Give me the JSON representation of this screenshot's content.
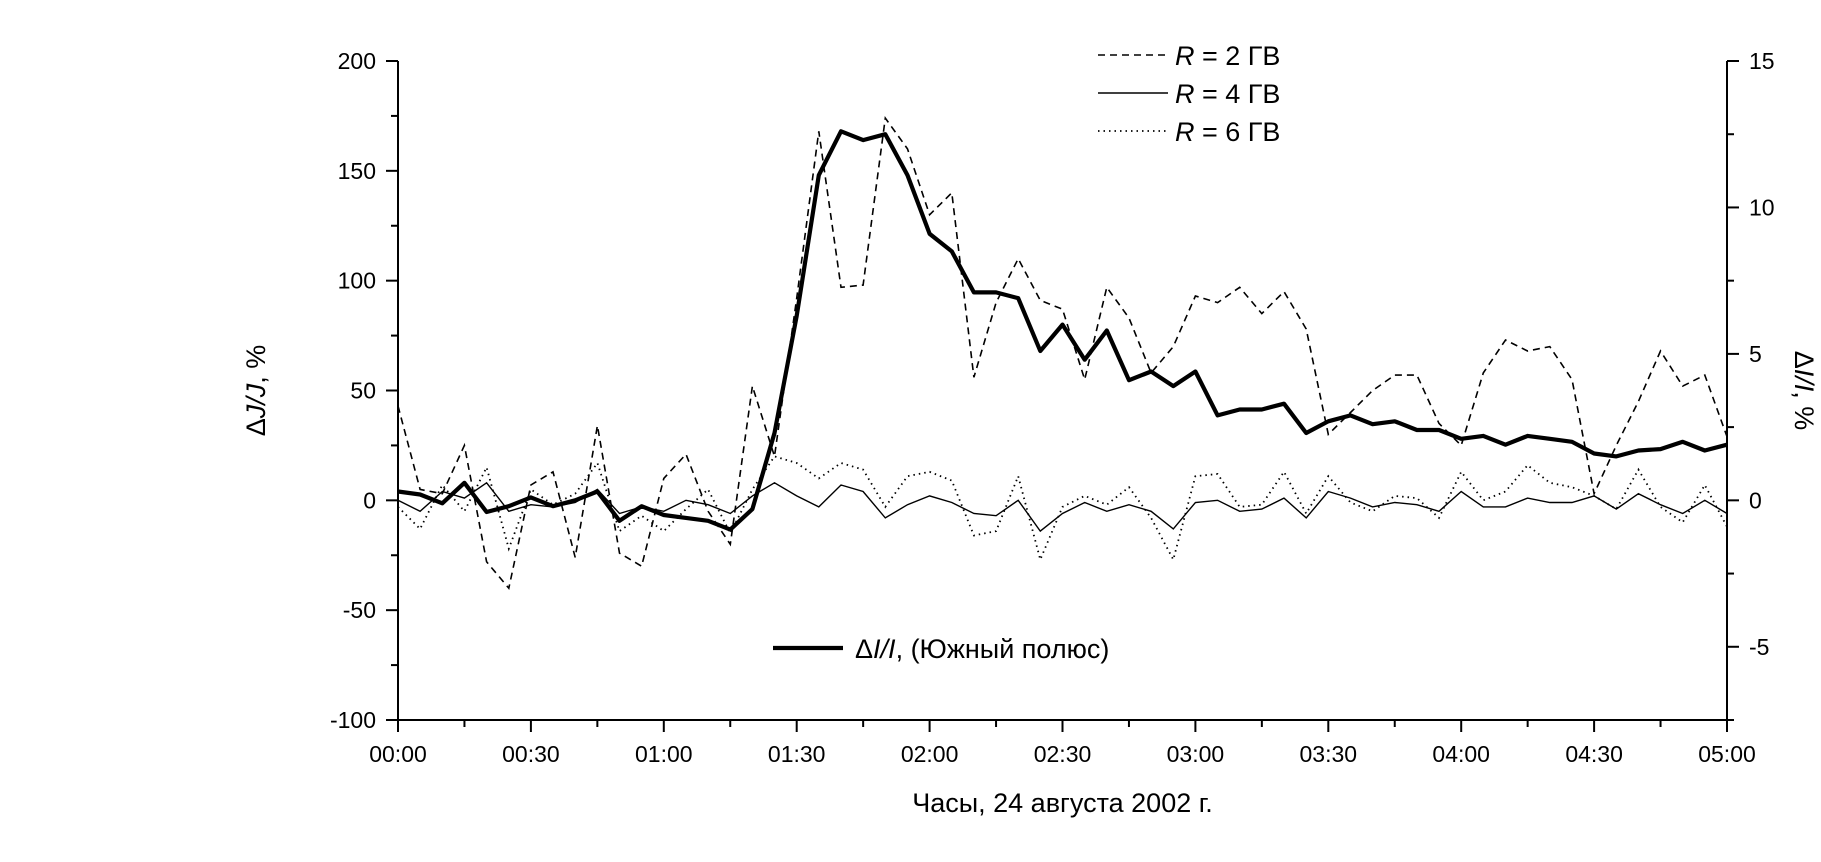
{
  "chart_data": {
    "type": "line",
    "xlabel": "Часы, 24 августа 2002 г.",
    "ylabel_left": "ΔJ/J, %",
    "ylabel_right": "ΔI/I, %",
    "x_ticks": [
      "00:00",
      "00:30",
      "01:00",
      "01:30",
      "02:00",
      "02:30",
      "03:00",
      "03:30",
      "04:00",
      "04:30",
      "05:00"
    ],
    "xlim_minutes": [
      0,
      300
    ],
    "ylim_left": [
      -100,
      200
    ],
    "ylim_right": [
      -7.5,
      15
    ],
    "yticks_left": [
      -100,
      -50,
      0,
      50,
      100,
      150,
      200
    ],
    "yticks_right": [
      -5,
      0,
      5,
      10,
      15
    ],
    "grid": false,
    "legend_top": {
      "position": "top-center",
      "entries": [
        {
          "prefix": "R",
          "text": " = 2 ГВ",
          "style": "dashed"
        },
        {
          "prefix": "R",
          "text": " = 4 ГВ",
          "style": "solid"
        },
        {
          "prefix": "R",
          "text": " = 6 ГВ",
          "style": "dotted"
        }
      ]
    },
    "legend_bottom": {
      "position": "bottom-center",
      "entry": {
        "pre": "Δ",
        "italic": "I/I",
        "post": ", (Южный полюс)",
        "style": "bold"
      }
    },
    "series": [
      {
        "name": "R = 2 ГВ",
        "axis": "left",
        "style": "dashed",
        "x": [
          0,
          5,
          10,
          15,
          20,
          25,
          30,
          35,
          40,
          45,
          50,
          55,
          60,
          65,
          70,
          75,
          80,
          85,
          90,
          95,
          100,
          105,
          110,
          115,
          120,
          125,
          130,
          135,
          140,
          145,
          150,
          155,
          160,
          165,
          170,
          175,
          180,
          185,
          190,
          195,
          200,
          205,
          210,
          215,
          220,
          225,
          230,
          235,
          240,
          245,
          250,
          255,
          260,
          265,
          270,
          275,
          280,
          285,
          290,
          295,
          300
        ],
        "y": [
          43,
          5,
          3,
          25,
          -28,
          -40,
          7,
          13,
          -26,
          34,
          -24,
          -30,
          10,
          21,
          -5,
          -20,
          52,
          20,
          92,
          168,
          97,
          98,
          174,
          160,
          130,
          140,
          56,
          90,
          110,
          91,
          87,
          55,
          97,
          83,
          58,
          70,
          93,
          90,
          97,
          85,
          95,
          78,
          30,
          40,
          50,
          57,
          57,
          35,
          25,
          58,
          73,
          68,
          70,
          55,
          3,
          25,
          45,
          68,
          52,
          57,
          29
        ]
      },
      {
        "name": "R = 4 ГВ",
        "axis": "left",
        "style": "solid",
        "x": [
          0,
          5,
          10,
          15,
          20,
          25,
          30,
          35,
          40,
          45,
          50,
          55,
          60,
          65,
          70,
          75,
          80,
          85,
          90,
          95,
          100,
          105,
          110,
          115,
          120,
          125,
          130,
          135,
          140,
          145,
          150,
          155,
          160,
          165,
          170,
          175,
          180,
          185,
          190,
          195,
          200,
          205,
          210,
          215,
          220,
          225,
          230,
          235,
          240,
          245,
          250,
          255,
          260,
          265,
          270,
          275,
          280,
          285,
          290,
          295,
          300
        ],
        "y": [
          0,
          -5,
          4,
          1,
          8,
          -5,
          -2,
          -3,
          -1,
          5,
          -6,
          -3,
          -5,
          0,
          -2,
          -6,
          2,
          8,
          2,
          -3,
          7,
          4,
          -8,
          -2,
          2,
          -1,
          -6,
          -7,
          0,
          -14,
          -6,
          -1,
          -5,
          -2,
          -5,
          -13,
          -1,
          0,
          -5,
          -4,
          1,
          -8,
          4,
          1,
          -3,
          -1,
          -2,
          -5,
          4,
          -3,
          -3,
          1,
          -1,
          -1,
          2,
          -4,
          3,
          -2,
          -6,
          0,
          -6
        ]
      },
      {
        "name": "R = 6 ГВ",
        "axis": "left",
        "style": "dotted",
        "x": [
          0,
          5,
          10,
          15,
          20,
          25,
          30,
          35,
          40,
          45,
          50,
          55,
          60,
          65,
          70,
          75,
          80,
          85,
          90,
          95,
          100,
          105,
          110,
          115,
          120,
          125,
          130,
          135,
          140,
          145,
          150,
          155,
          160,
          165,
          170,
          175,
          180,
          185,
          190,
          195,
          200,
          205,
          210,
          215,
          220,
          225,
          230,
          235,
          240,
          245,
          250,
          255,
          260,
          265,
          270,
          275,
          280,
          285,
          290,
          295,
          300
        ],
        "y": [
          -3,
          -13,
          7,
          -5,
          15,
          -22,
          5,
          -2,
          3,
          17,
          -14,
          -7,
          -14,
          -4,
          5,
          -15,
          5,
          20,
          17,
          10,
          17,
          14,
          -3,
          11,
          13,
          9,
          -16,
          -14,
          11,
          -27,
          -3,
          2,
          -2,
          6,
          -8,
          -27,
          11,
          12,
          -3,
          -2,
          13,
          -6,
          11,
          -1,
          -5,
          2,
          1,
          -8,
          13,
          0,
          4,
          16,
          8,
          6,
          2,
          -4,
          14,
          -3,
          -10,
          7,
          -12
        ]
      },
      {
        "name": "ΔI/I, (Южный полюс)",
        "axis": "right",
        "style": "bold",
        "x": [
          0,
          5,
          10,
          15,
          20,
          25,
          30,
          35,
          40,
          45,
          50,
          55,
          60,
          65,
          70,
          75,
          80,
          85,
          90,
          95,
          100,
          105,
          110,
          115,
          120,
          125,
          130,
          135,
          140,
          145,
          150,
          155,
          160,
          165,
          170,
          175,
          180,
          185,
          190,
          195,
          200,
          205,
          210,
          215,
          220,
          225,
          230,
          235,
          240,
          245,
          250,
          255,
          260,
          265,
          270,
          275,
          280,
          285,
          290,
          295,
          300
        ],
        "y": [
          0.3,
          0.2,
          -0.1,
          0.6,
          -0.4,
          -0.2,
          0.1,
          -0.2,
          0.0,
          0.3,
          -0.7,
          -0.2,
          -0.5,
          -0.6,
          -0.7,
          -1.0,
          -0.3,
          2.3,
          6.3,
          11.1,
          12.6,
          12.3,
          12.5,
          11.1,
          9.1,
          8.5,
          7.1,
          7.1,
          6.9,
          5.1,
          6.0,
          4.8,
          5.8,
          4.1,
          4.4,
          3.9,
          4.4,
          2.9,
          3.1,
          3.1,
          3.3,
          2.3,
          2.7,
          2.9,
          2.6,
          2.7,
          2.4,
          2.4,
          2.1,
          2.2,
          1.9,
          2.2,
          2.1,
          2.0,
          1.6,
          1.5,
          1.7,
          1.75,
          2.0,
          1.7,
          1.9
        ]
      }
    ]
  }
}
